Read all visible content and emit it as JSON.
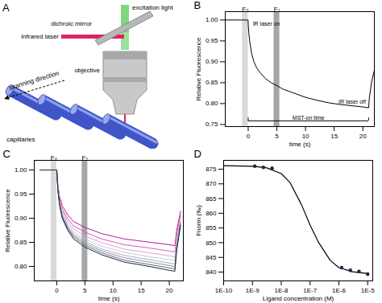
{
  "chart_data": [
    {
      "type": "diagram",
      "title": "A",
      "labels": {
        "excitation": "excitation light",
        "mirror": "dichroic mirror",
        "laser": "infrared laser",
        "objective": "objective",
        "scanning": "scanning direction",
        "capillaries": "capillaries"
      }
    },
    {
      "type": "line",
      "title": "B",
      "xlabel": "time (s)",
      "ylabel": "Relative Fluorescence",
      "x": [
        -4,
        -2,
        -0.01,
        0,
        0.1,
        0.3,
        0.6,
        1,
        1.5,
        2,
        3,
        4,
        5,
        6,
        8,
        10,
        12,
        14,
        16,
        18,
        20,
        21,
        21.1,
        21.5,
        22
      ],
      "series": [
        {
          "color": "#000000",
          "values": [
            1.0,
            1.0,
            1.0,
            0.99,
            0.97,
            0.945,
            0.92,
            0.9,
            0.885,
            0.875,
            0.86,
            0.85,
            0.843,
            0.835,
            0.825,
            0.815,
            0.808,
            0.802,
            0.798,
            0.795,
            0.792,
            0.79,
            0.81,
            0.85,
            0.88
          ]
        }
      ],
      "xlim": [
        -4,
        22
      ],
      "xticks": [
        0,
        5,
        10,
        15,
        20
      ],
      "ylim": [
        0.745,
        1.02
      ],
      "yticks": [
        0.75,
        {
          "value": 0.8,
          "label": "0.80"
        },
        0.85,
        {
          "value": 0.9,
          "label": "0.90"
        },
        0.95,
        {
          "value": 1,
          "label": "1.00"
        }
      ],
      "bands": [
        {
          "label": "F₀",
          "x": [
            -1,
            0
          ]
        },
        {
          "label": "F₁",
          "x": [
            4.5,
            5.5
          ]
        }
      ],
      "annotations": [
        {
          "text": "IR laser on",
          "x": 0.8,
          "y": 0.99
        },
        {
          "text": "IR laser off",
          "x": 20.5,
          "y": 0.805
        }
      ],
      "mst_on_time": {
        "label": "MST-on time",
        "x": [
          0,
          21
        ]
      }
    },
    {
      "type": "line",
      "title": "C",
      "xlabel": "time (s)",
      "ylabel": "Relative Fluorescence",
      "x": [
        -3,
        -1,
        0,
        0.2,
        0.5,
        1,
        2,
        3,
        5,
        8,
        12,
        16,
        20,
        21,
        21.3,
        22
      ],
      "series": [
        {
          "color": "#c0189b",
          "values": [
            1,
            1,
            1,
            0.969,
            0.945,
            0.925,
            0.906,
            0.893,
            0.881,
            0.868,
            0.857,
            0.851,
            0.845,
            0.843,
            0.874,
            0.914
          ]
        },
        {
          "color": "#d45bb8",
          "values": [
            1,
            1,
            1,
            0.966,
            0.941,
            0.918,
            0.898,
            0.884,
            0.871,
            0.857,
            0.845,
            0.839,
            0.832,
            0.83,
            0.864,
            0.907
          ]
        },
        {
          "color": "#e0a3d3",
          "values": [
            1,
            1,
            1,
            0.964,
            0.937,
            0.914,
            0.892,
            0.878,
            0.863,
            0.849,
            0.836,
            0.829,
            0.822,
            0.82,
            0.856,
            0.901
          ]
        },
        {
          "color": "#c8ccd4",
          "values": [
            1,
            1,
            1,
            0.962,
            0.934,
            0.91,
            0.887,
            0.872,
            0.857,
            0.842,
            0.829,
            0.821,
            0.814,
            0.812,
            0.85,
            0.897
          ]
        },
        {
          "color": "#a9b0bb",
          "values": [
            1,
            1,
            1,
            0.961,
            0.932,
            0.906,
            0.883,
            0.867,
            0.852,
            0.836,
            0.823,
            0.815,
            0.807,
            0.805,
            0.844,
            0.893
          ]
        },
        {
          "color": "#8a93a3",
          "values": [
            1,
            1,
            1,
            0.96,
            0.93,
            0.904,
            0.88,
            0.864,
            0.848,
            0.832,
            0.818,
            0.81,
            0.802,
            0.8,
            0.84,
            0.89
          ]
        },
        {
          "color": "#5d6a80",
          "values": [
            1,
            1,
            1,
            0.959,
            0.928,
            0.902,
            0.877,
            0.861,
            0.844,
            0.828,
            0.813,
            0.805,
            0.797,
            0.795,
            0.836,
            0.887
          ]
        },
        {
          "color": "#1d2740",
          "values": [
            1,
            1,
            1,
            0.958,
            0.927,
            0.899,
            0.874,
            0.857,
            0.84,
            0.824,
            0.809,
            0.801,
            0.792,
            0.79,
            0.832,
            0.885
          ]
        }
      ],
      "xlim": [
        -4,
        22.5
      ],
      "xticks": [
        0,
        5,
        10,
        15,
        20
      ],
      "ylim": [
        0.77,
        1.02
      ],
      "yticks": [
        {
          "value": 0.8,
          "label": "0.80"
        },
        0.85,
        {
          "value": 0.9,
          "label": "0.90"
        },
        0.95,
        {
          "value": 1,
          "label": "1.00"
        }
      ],
      "bands": [
        {
          "label": "F₀",
          "x": [
            -1,
            0
          ]
        },
        {
          "label": "F₁",
          "x": [
            4.5,
            5.5
          ]
        }
      ]
    },
    {
      "type": "scatter",
      "title": "D",
      "xlabel": "Ligand concentration (M)",
      "ylabel": "Fnorm (‰)",
      "log": "x",
      "color": "#1f2a44",
      "x": [
        1.2e-09,
        2.4e-09,
        4.8e-09,
        1.25e-06,
        2.5e-06,
        5e-06,
        1e-05
      ],
      "values": [
        876.0,
        875.6,
        875.3,
        841.5,
        840.6,
        840.2,
        839.3
      ],
      "fit": {
        "color": "#000000",
        "x": [
          1e-10,
          1e-09,
          3e-09,
          1e-08,
          2e-08,
          5e-08,
          1e-07,
          2e-07,
          5e-07,
          1e-06,
          3e-06,
          1e-05
        ],
        "values": [
          876.2,
          876.0,
          875.5,
          873.5,
          870.5,
          863.0,
          856.0,
          850.0,
          844.0,
          841.5,
          840.1,
          839.5
        ]
      },
      "xlim": [
        1e-10,
        1.5e-05
      ],
      "xticks": [
        {
          "value": 1e-10,
          "label": "1E-10"
        },
        {
          "value": 1e-09,
          "label": "1E-9"
        },
        {
          "value": 1e-08,
          "label": "1E-8"
        },
        {
          "value": 1e-07,
          "label": "1E-7"
        },
        {
          "value": 1e-06,
          "label": "1E-6"
        },
        {
          "value": 1e-05,
          "label": "1E-5"
        }
      ],
      "ylim": [
        837,
        878
      ],
      "yticks": [
        840,
        845,
        850,
        855,
        860,
        865,
        870,
        875
      ]
    }
  ]
}
